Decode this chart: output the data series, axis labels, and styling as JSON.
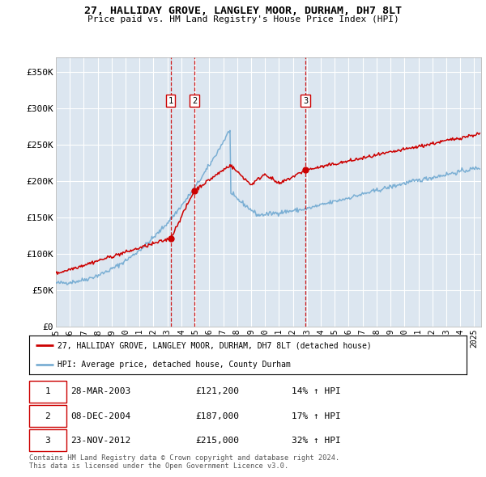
{
  "title": "27, HALLIDAY GROVE, LANGLEY MOOR, DURHAM, DH7 8LT",
  "subtitle": "Price paid vs. HM Land Registry's House Price Index (HPI)",
  "background_color": "#ffffff",
  "plot_bg_color": "#dce6f0",
  "grid_color": "#ffffff",
  "ylim": [
    0,
    370000
  ],
  "yticks": [
    0,
    50000,
    100000,
    150000,
    200000,
    250000,
    300000,
    350000
  ],
  "ytick_labels": [
    "£0",
    "£50K",
    "£100K",
    "£150K",
    "£200K",
    "£250K",
    "£300K",
    "£350K"
  ],
  "xlim_start": 1995,
  "xlim_end": 2025.5,
  "sale_dates": [
    2003.23,
    2004.93,
    2012.9
  ],
  "sale_prices": [
    121200,
    187000,
    215000
  ],
  "sale_labels": [
    "1",
    "2",
    "3"
  ],
  "legend_house": "27, HALLIDAY GROVE, LANGLEY MOOR, DURHAM, DH7 8LT (detached house)",
  "legend_hpi": "HPI: Average price, detached house, County Durham",
  "table_data": [
    [
      "1",
      "28-MAR-2003",
      "£121,200",
      "14% ↑ HPI"
    ],
    [
      "2",
      "08-DEC-2004",
      "£187,000",
      "17% ↑ HPI"
    ],
    [
      "3",
      "23-NOV-2012",
      "£215,000",
      "32% ↑ HPI"
    ]
  ],
  "footnote": "Contains HM Land Registry data © Crown copyright and database right 2024.\nThis data is licensed under the Open Government Licence v3.0.",
  "house_line_color": "#cc0000",
  "hpi_line_color": "#7bafd4",
  "sale_marker_color": "#cc0000",
  "vline_color": "#cc0000",
  "label_box_color": "#cc0000"
}
